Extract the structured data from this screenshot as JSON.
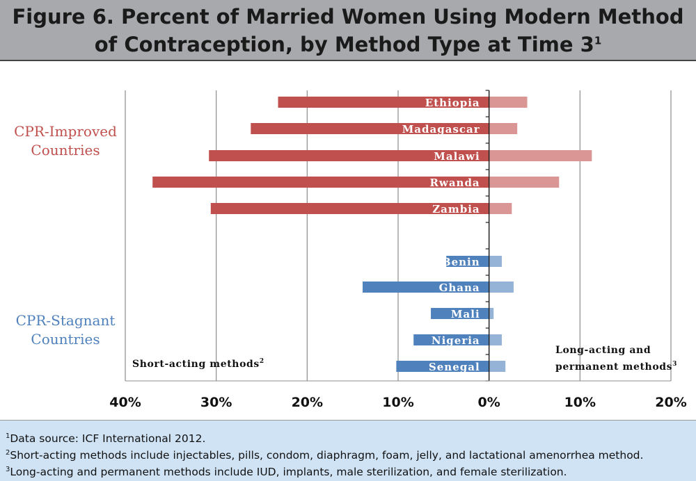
{
  "header": {
    "title_line1": "Figure 6. Percent of Married Women Using Modern Method",
    "title_line2": "of Contraception, by Method Type at Time 3",
    "title_sup": "1"
  },
  "chart_data": {
    "type": "bar",
    "orientation": "horizontal-diverging",
    "categories": [
      "Ethiopia",
      "Madagascar",
      "Malawi",
      "Rwanda",
      "Zambia",
      "Benin",
      "Ghana",
      "Mali",
      "Nigeria",
      "Senegal"
    ],
    "groups": [
      {
        "label": "CPR-Improved Countries",
        "label_lines": [
          "CPR-Improved",
          "Countries"
        ],
        "color": "#c0504d",
        "categories": [
          "Ethiopia",
          "Madagascar",
          "Malawi",
          "Rwanda",
          "Zambia"
        ]
      },
      {
        "label": "CPR-Stagnant Countries",
        "label_lines": [
          "CPR-Stagnant",
          "Countries"
        ],
        "color": "#4f81bd",
        "categories": [
          "Benin",
          "Ghana",
          "Mali",
          "Nigeria",
          "Senegal"
        ]
      }
    ],
    "series": [
      {
        "name": "Short-acting methods",
        "direction": "left",
        "values": [
          23.2,
          26.2,
          30.8,
          37.0,
          30.6,
          4.7,
          13.9,
          6.4,
          8.3,
          10.2
        ]
      },
      {
        "name": "Long-acting and permanent methods",
        "direction": "right",
        "values": [
          4.2,
          3.1,
          11.3,
          7.7,
          2.5,
          1.4,
          2.7,
          0.5,
          1.4,
          1.8
        ]
      }
    ],
    "xlim": [
      -40,
      20
    ],
    "xticks": [
      -40,
      -30,
      -20,
      -10,
      0,
      10,
      20
    ],
    "xtick_labels": [
      "40%",
      "30%",
      "20%",
      "10%",
      "0%",
      "10%",
      "20%"
    ],
    "grid": true,
    "colors": {
      "improved_short": "#c0504d",
      "improved_long": "#d99694",
      "stagnant_short": "#4f81bd",
      "stagnant_long": "#95b3d7"
    },
    "annotations": {
      "short_label": "Short-acting methods",
      "short_sup": "2",
      "long_label_line1": "Long-acting and",
      "long_label_line2": "permanent methods",
      "long_sup": "3"
    }
  },
  "footer": {
    "notes": [
      {
        "sup": "1",
        "text": "Data source: ICF International 2012."
      },
      {
        "sup": "2",
        "text": "Short-acting methods include injectables, pills, condom, diaphragm, foam, jelly, and lactational amenorrhea method."
      },
      {
        "sup": "3",
        "text": "Long-acting and permanent methods include IUD, implants, male sterilization, and female sterilization."
      }
    ]
  }
}
